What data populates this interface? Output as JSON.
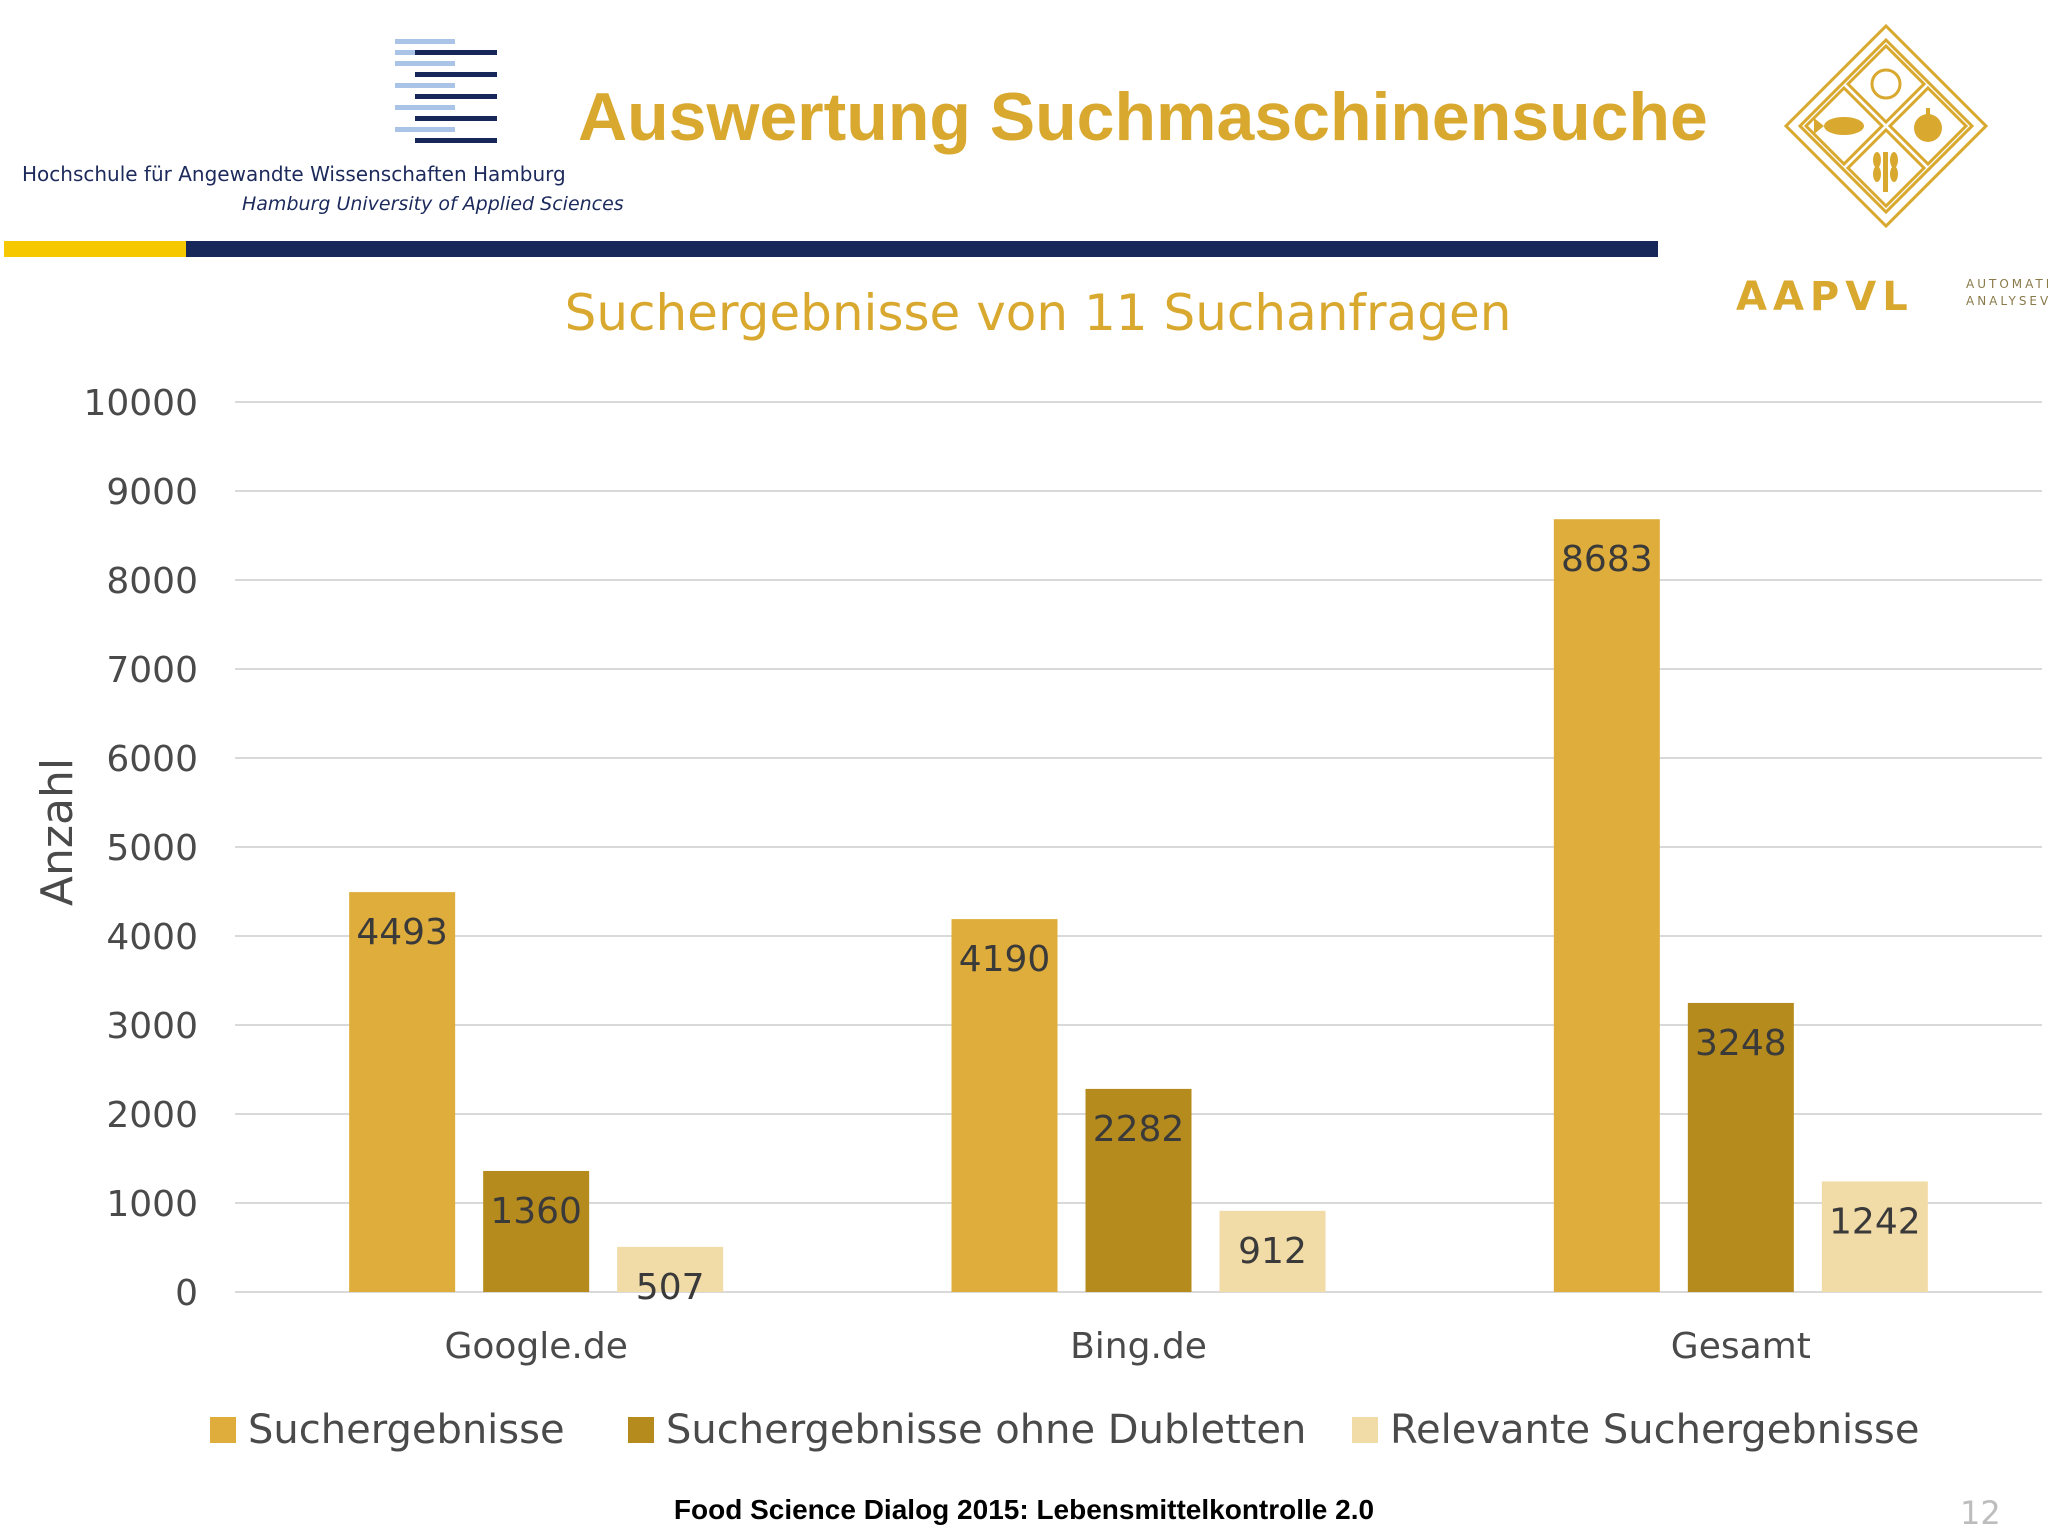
{
  "header": {
    "title": "Auswertung Suchmaschinensuche",
    "university_de": "Hochschule für Angewandte Wissenschaften Hamburg",
    "university_en": "Hamburg University of Applied Sciences",
    "partner_logo": "AAPVL",
    "partner_sub_1": "AUTOMATISIERTES",
    "partner_sub_2": "ANALYSEVERFAHREN",
    "accent_color": "#d9a82f",
    "navy_color": "#17275a",
    "yellow_color": "#f6c800"
  },
  "chart_data": {
    "type": "bar",
    "title": "Suchergebnisse von 11 Suchanfragen",
    "xlabel": "",
    "ylabel": "Anzahl",
    "ylim": [
      0,
      10000
    ],
    "yticks": [
      "0",
      "1000",
      "2000",
      "3000",
      "4000",
      "5000",
      "6000",
      "7000",
      "8000",
      "9000",
      "10000"
    ],
    "categories": [
      "Google.de",
      "Bing.de",
      "Gesamt"
    ],
    "series": [
      {
        "name": "Suchergebnisse",
        "values": [
          4493,
          4190,
          8683
        ],
        "color": "#dfad3b"
      },
      {
        "name": "Suchergebnisse ohne Dubletten",
        "values": [
          1360,
          2282,
          3248
        ],
        "color": "#b68b1e"
      },
      {
        "name": "Relevante Suchergebnisse",
        "values": [
          507,
          912,
          1242
        ],
        "color": "#f1dba6"
      }
    ],
    "grid": true,
    "legend": "bottom"
  },
  "footer": {
    "text": "Food Science Dialog 2015: Lebensmittelkontrolle 2.0",
    "page_number": "12"
  }
}
